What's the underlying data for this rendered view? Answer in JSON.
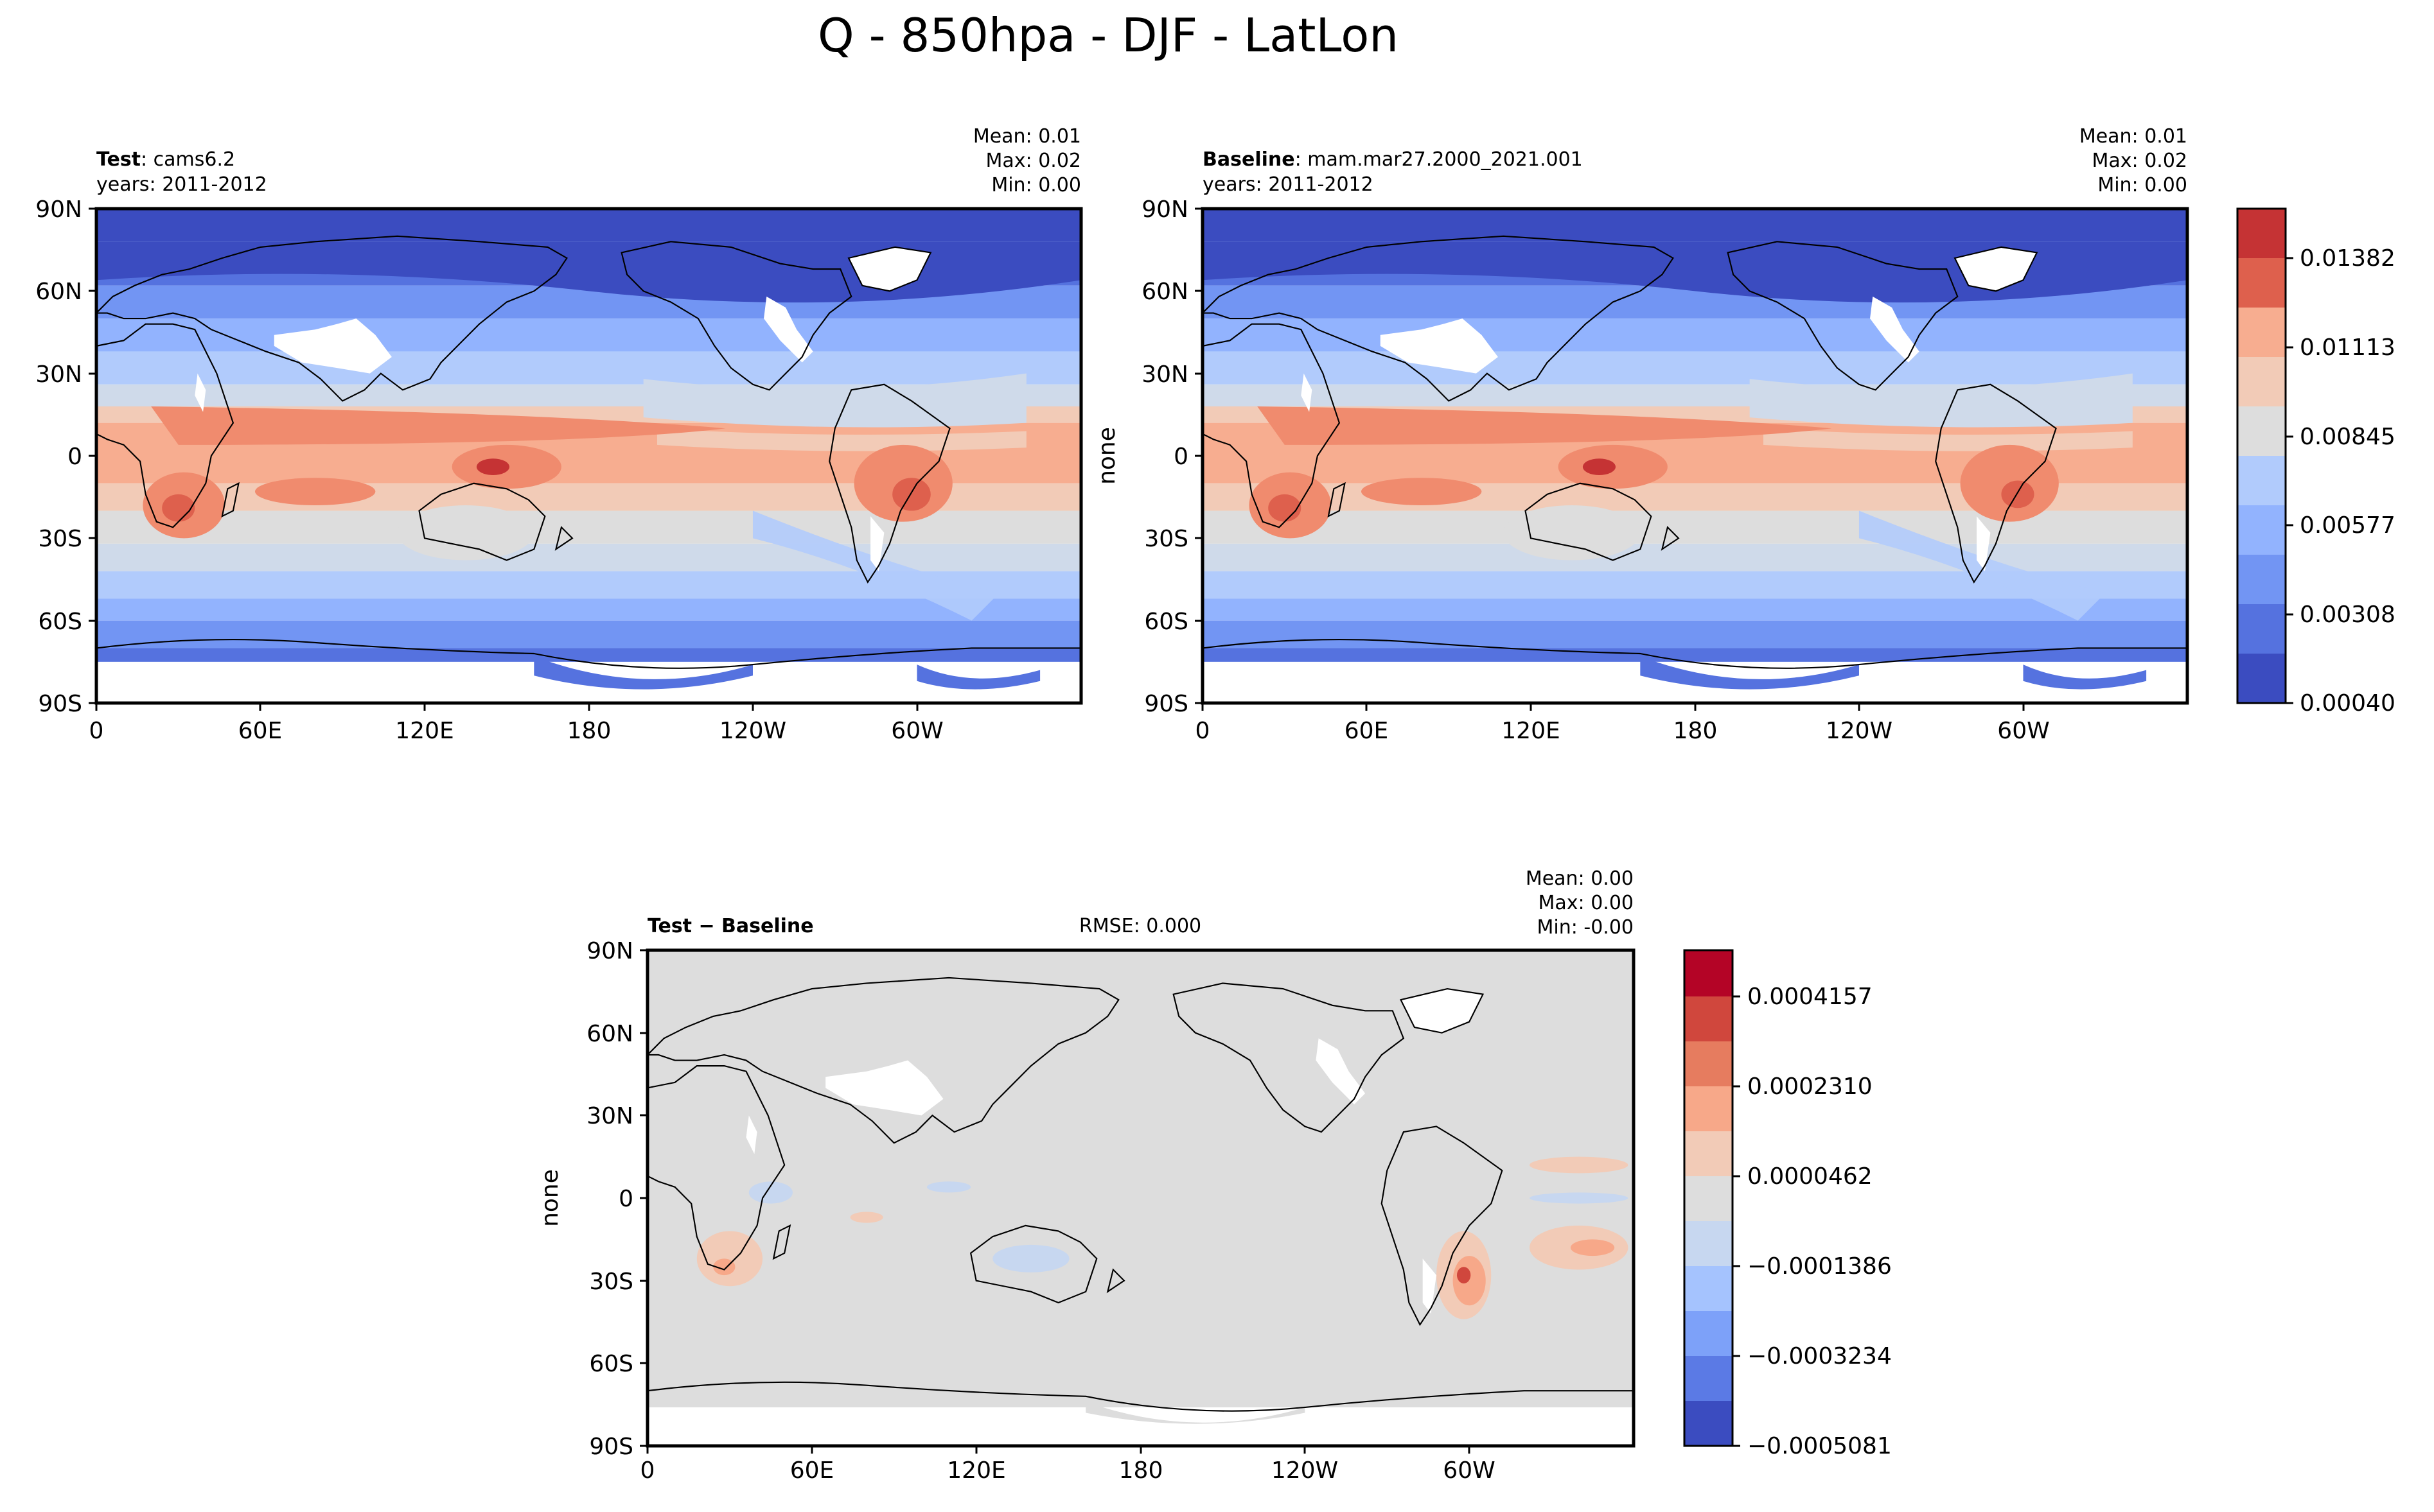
{
  "title": "Q - 850hpa - DJF - LatLon",
  "panels": [
    {
      "id": "test",
      "label_bold": "Test",
      "label_rest": ": cams6.2",
      "years": "years: 2011-2012",
      "stats": {
        "mean": "Mean:  0.01",
        "max": "Max:  0.02",
        "min": "Min:  0.00"
      },
      "ylabel": ""
    },
    {
      "id": "baseline",
      "label_bold": "Baseline",
      "label_rest": ": mam.mar27.2000_2021.001",
      "years": "years: 2011-2012",
      "stats": {
        "mean": "Mean:  0.01",
        "max": "Max:  0.02",
        "min": "Min:  0.00"
      },
      "ylabel": "none"
    },
    {
      "id": "diff",
      "label_bold": "Test − Baseline",
      "label_rest": "",
      "years": "",
      "rmse": "RMSE: 0.000",
      "stats": {
        "mean": "Mean:  0.00",
        "max": "Max:  0.00",
        "min": "Min: -0.00"
      },
      "ylabel": "none"
    }
  ],
  "chart_data": [
    {
      "type": "heatmap",
      "name": "Test",
      "title": "Test: cams6.2",
      "x_ticks": [
        "0",
        "60E",
        "120E",
        "180",
        "120W",
        "60W"
      ],
      "y_ticks": [
        "90N",
        "60N",
        "30N",
        "0",
        "30S",
        "60S",
        "90S"
      ],
      "xlim": [
        0,
        360
      ],
      "ylim": [
        -90,
        90
      ],
      "colorbar": {
        "ticks": [
          "0.01382",
          "0.01113",
          "0.00845",
          "0.00577",
          "0.00308",
          "0.00040"
        ]
      }
    },
    {
      "type": "heatmap",
      "name": "Baseline",
      "title": "Baseline: mam.mar27.2000_2021.001",
      "x_ticks": [
        "0",
        "60E",
        "120E",
        "180",
        "120W",
        "60W"
      ],
      "y_ticks": [
        "90N",
        "60N",
        "30N",
        "0",
        "30S",
        "60S",
        "90S"
      ],
      "xlim": [
        0,
        360
      ],
      "ylim": [
        -90,
        90
      ]
    },
    {
      "type": "heatmap",
      "name": "Test - Baseline",
      "title": "Test − Baseline",
      "x_ticks": [
        "0",
        "60E",
        "120E",
        "180",
        "120W",
        "60W"
      ],
      "y_ticks": [
        "90N",
        "60N",
        "30N",
        "0",
        "30S",
        "60S",
        "90S"
      ],
      "xlim": [
        0,
        360
      ],
      "ylim": [
        -90,
        90
      ],
      "colorbar": {
        "ticks": [
          "0.0004157",
          "0.0002310",
          "0.0000462",
          "−0.0001386",
          "−0.0003234",
          "−0.0005081"
        ]
      }
    }
  ],
  "colors": {
    "main_levels": [
      "#3b4cc0",
      "#5572df",
      "#7295f3",
      "#92b3fe",
      "#b1cbfc",
      "#cfdaea",
      "#dddddd",
      "#f2cbb7",
      "#f7ad90",
      "#f08b6e",
      "#de604d",
      "#c53334"
    ],
    "diff_levels": [
      "#3b4cc0",
      "#5b7ae5",
      "#7da1f9",
      "#a5c3fe",
      "#c7d7f0",
      "#dddddd",
      "#f2cbb7",
      "#f7a889",
      "#e67c5f",
      "#d0473d",
      "#b40426"
    ],
    "land_outline": "#000000",
    "missing": "#ffffff"
  }
}
